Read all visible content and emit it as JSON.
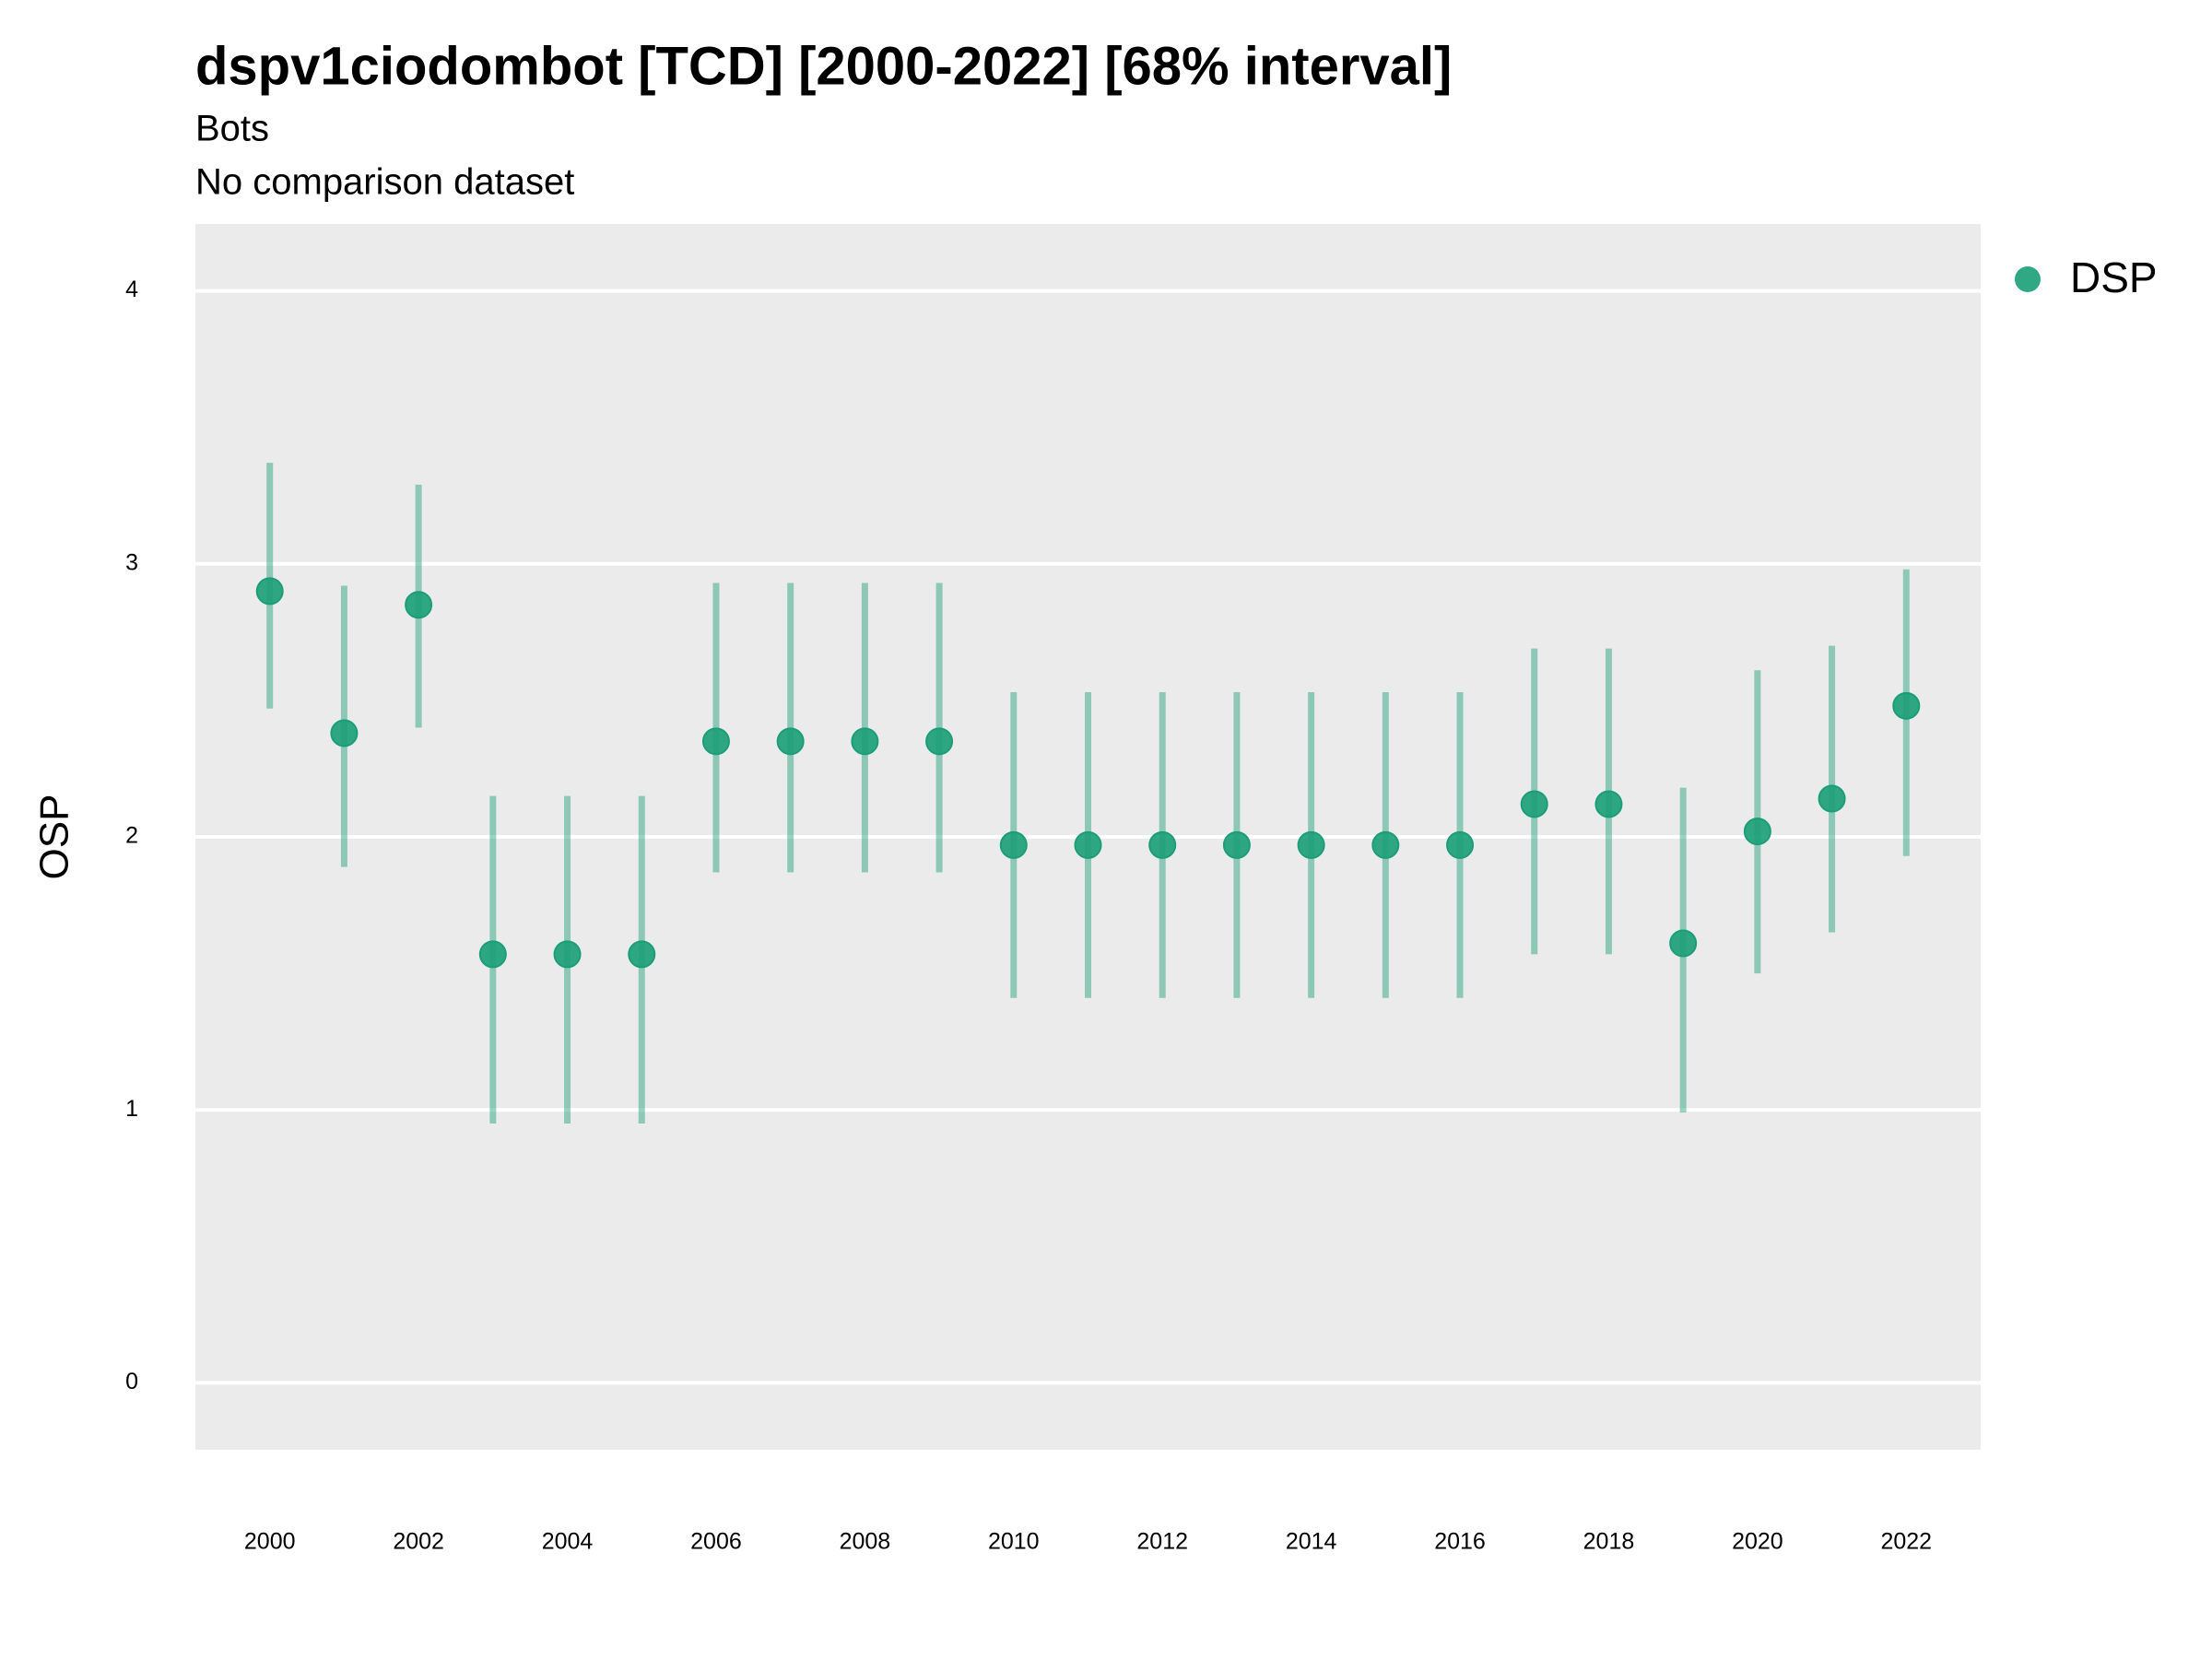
{
  "chart_data": {
    "type": "pointrange",
    "title": "dspv1ciodombot [TCD] [2000-2022] [68% interval]",
    "subtitle": [
      "Bots",
      "No comparison dataset"
    ],
    "ylabel": "OSP",
    "x": [
      2000,
      2001,
      2002,
      2003,
      2004,
      2005,
      2006,
      2007,
      2008,
      2009,
      2010,
      2011,
      2012,
      2013,
      2014,
      2015,
      2016,
      2017,
      2018,
      2019,
      2020,
      2021,
      2022
    ],
    "series": [
      {
        "name": "DSP",
        "color": "#1b9e77",
        "values": [
          2.9,
          2.38,
          2.85,
          1.57,
          1.57,
          1.57,
          2.35,
          2.35,
          2.35,
          2.35,
          1.97,
          1.97,
          1.97,
          1.97,
          1.97,
          1.97,
          1.97,
          2.12,
          2.12,
          1.61,
          2.02,
          2.14,
          2.48
        ],
        "lower": [
          2.47,
          1.89,
          2.4,
          0.95,
          0.95,
          0.95,
          1.87,
          1.87,
          1.87,
          1.87,
          1.41,
          1.41,
          1.41,
          1.41,
          1.41,
          1.41,
          1.41,
          1.57,
          1.57,
          0.99,
          1.5,
          1.65,
          1.93
        ],
        "upper": [
          3.37,
          2.92,
          3.29,
          2.15,
          2.15,
          2.15,
          2.93,
          2.93,
          2.93,
          2.93,
          2.53,
          2.53,
          2.53,
          2.53,
          2.53,
          2.53,
          2.53,
          2.69,
          2.69,
          2.18,
          2.61,
          2.7,
          2.98
        ]
      }
    ],
    "xlim": [
      1999,
      2023
    ],
    "xticks": [
      2000,
      2002,
      2004,
      2006,
      2008,
      2010,
      2012,
      2014,
      2016,
      2018,
      2020,
      2022
    ],
    "ylim": [
      -0.245,
      4.245
    ],
    "yticks": [
      0,
      1,
      2,
      3,
      4
    ],
    "grid": true,
    "legend": "right"
  }
}
